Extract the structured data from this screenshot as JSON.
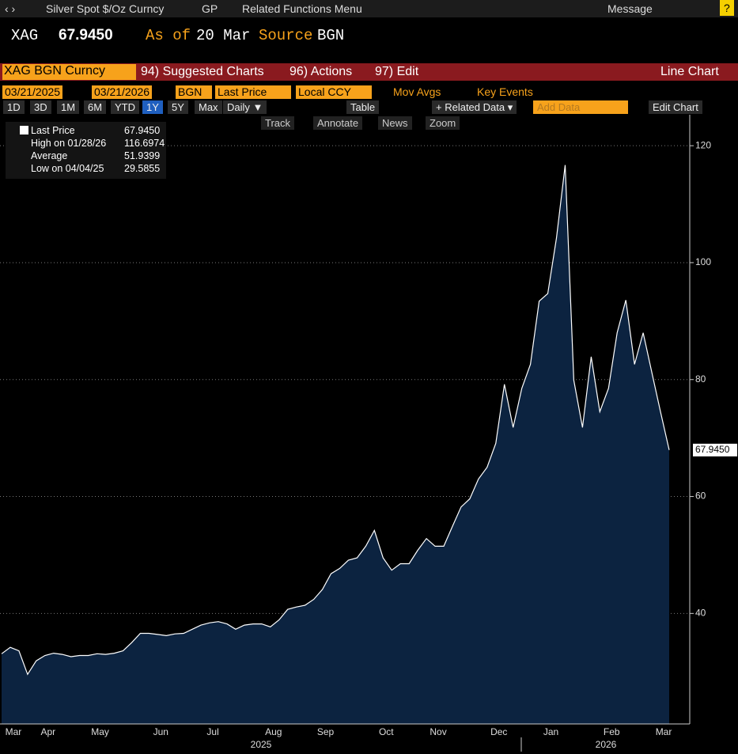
{
  "ui": {
    "top": [
      "Silver Spot $/Oz Curncy",
      "GP",
      "Related Functions Menu",
      "Message"
    ],
    "header": {
      "ticker": "XAG",
      "price": "67.9450",
      "asof": "As of",
      "date": "20 Mar",
      "source": "Source",
      "src": "BGN"
    },
    "redbar": [
      "XAG BGN Curncy",
      "94) Suggested Charts",
      "96) Actions",
      "97) Edit",
      "Line Chart"
    ],
    "controls": [
      "03/21/2025",
      "03/21/2026",
      "BGN",
      "Last Price",
      "Local CCY",
      "Mov Avgs",
      "Key Events"
    ],
    "buttons": [
      "1D",
      "3D",
      "1M",
      "6M",
      "YTD",
      "1Y",
      "5Y",
      "Max",
      "Daily ▼",
      "Table",
      "+ Related Data ▾",
      "Add Data",
      "Edit Chart"
    ],
    "tools": [
      "Track",
      "Annotate",
      "News",
      "Zoom"
    ]
  },
  "chart_data": {
    "type": "area",
    "color": "#0c2340",
    "line_color": "#ffffff",
    "categories": [
      null,
      "Mar",
      null,
      null,
      null,
      "Apr",
      null,
      null,
      null,
      null,
      null,
      "May",
      null,
      null,
      null,
      null,
      null,
      null,
      "Jun",
      null,
      null,
      null,
      null,
      null,
      "Jul",
      null,
      null,
      null,
      null,
      null,
      null,
      "Aug",
      null,
      null,
      null,
      null,
      null,
      "Sep",
      null,
      null,
      null,
      null,
      null,
      null,
      "Oct",
      null,
      null,
      null,
      null,
      null,
      "Nov",
      null,
      null,
      null,
      null,
      null,
      null,
      "Dec",
      null,
      null,
      null,
      null,
      null,
      "Jan",
      null,
      null,
      null,
      null,
      null,
      null,
      "Feb",
      null,
      null,
      null,
      null,
      null,
      "Mar",
      null
    ],
    "values": [
      33.1,
      34.2,
      33.6,
      29.5855,
      31.9,
      32.8,
      33.2,
      33.0,
      32.6,
      32.8,
      32.8,
      33.1,
      33.0,
      33.2,
      33.6,
      35.0,
      36.6,
      36.6,
      36.4,
      36.2,
      36.5,
      36.6,
      37.3,
      38.0,
      38.4,
      38.6,
      38.2,
      37.3,
      38.0,
      38.2,
      38.2,
      37.7,
      38.9,
      40.7,
      41.1,
      41.4,
      42.4,
      44.1,
      46.8,
      47.7,
      49.1,
      49.5,
      51.5,
      54.2,
      49.5,
      47.4,
      48.5,
      48.5,
      50.8,
      52.8,
      51.5,
      51.5,
      54.9,
      58.2,
      59.6,
      63.0,
      65.0,
      69.1,
      79.2,
      71.8,
      78.5,
      82.6,
      93.4,
      94.7,
      104.2,
      116.6974,
      79.9,
      71.8,
      83.9,
      74.5,
      78.5,
      88.0,
      93.6,
      82.6,
      88.0,
      81.2,
      74.5,
      67.945
    ],
    "years": [
      "2025",
      "2026"
    ],
    "last_label": "67.9450",
    "legend": [
      {
        "label": "Last Price",
        "value": "67.9450"
      },
      {
        "label": "High on 01/28/26",
        "value": "116.6974"
      },
      {
        "label": "Average",
        "value": "51.9399"
      },
      {
        "label": "Low on 04/04/25",
        "value": "29.5855"
      }
    ],
    "ylim": [
      21.1,
      125.3
    ],
    "yticks": [
      40,
      60,
      80,
      100,
      120
    ],
    "grid": true
  }
}
